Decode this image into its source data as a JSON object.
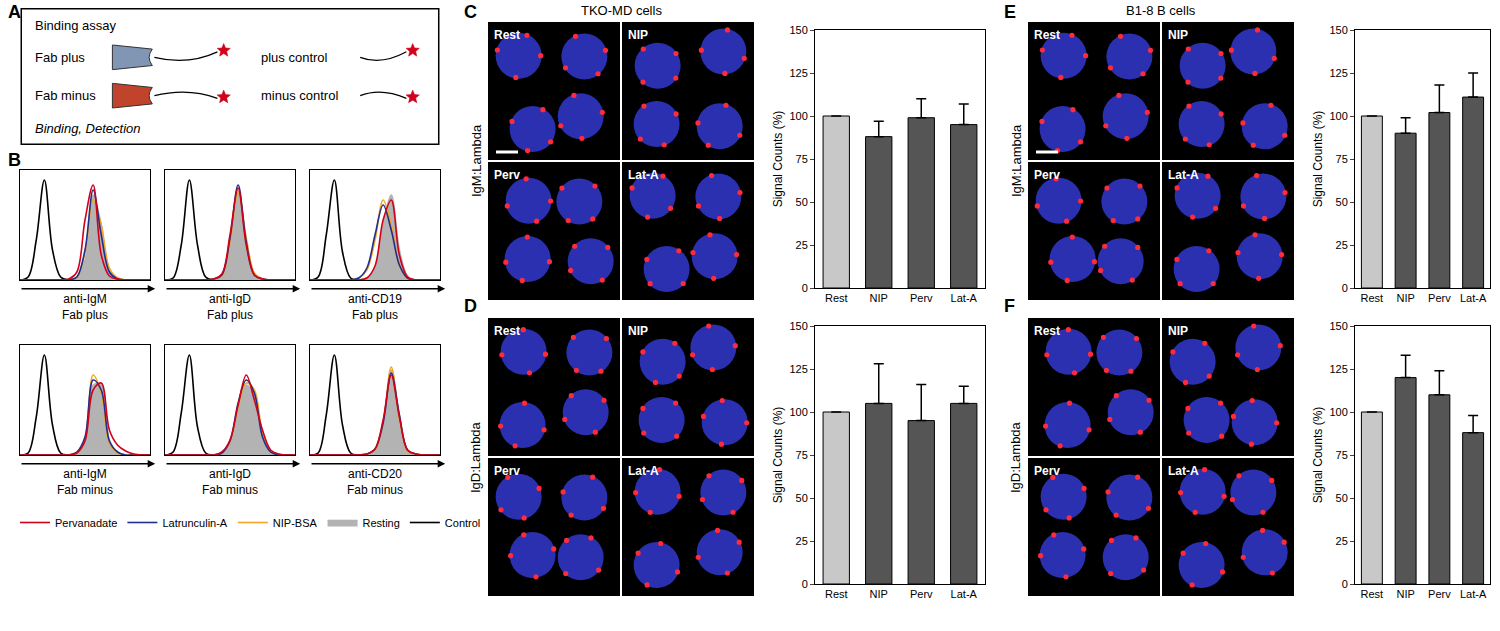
{
  "chart_data": [
    {
      "type": "line",
      "x_label": "anti-IgM\nFab plus",
      "x": [
        0,
        1,
        2,
        3,
        4,
        5,
        6,
        7,
        8,
        9,
        10,
        11,
        12,
        13,
        14,
        15,
        16
      ],
      "xlim": [
        0,
        16
      ],
      "xticks": [],
      "ylim": [
        0,
        110
      ],
      "yticks": [],
      "tick_labels": false,
      "grid": false,
      "legend": "bottom",
      "series": [
        {
          "name": "Control",
          "color": "#000000",
          "values": [
            0,
            3,
            40,
            100,
            30,
            3,
            0,
            0,
            0,
            0,
            0,
            0,
            0,
            0,
            0,
            0,
            0
          ]
        },
        {
          "name": "Resting",
          "color": "#b3b3b3",
          "type": "area",
          "values": [
            0,
            0,
            0,
            0,
            0,
            0,
            0,
            2,
            20,
            85,
            55,
            10,
            2,
            0,
            0,
            0,
            0
          ]
        },
        {
          "name": "NIP-BSA",
          "color": "#f5a623",
          "values": [
            0,
            0,
            0,
            0,
            0,
            0,
            0,
            3,
            28,
            80,
            55,
            12,
            2,
            0,
            0,
            0,
            0
          ]
        },
        {
          "name": "Latrunculin-A",
          "color": "#1f2f8f",
          "values": [
            0,
            0,
            0,
            0,
            0,
            0,
            0,
            3,
            30,
            90,
            45,
            8,
            1,
            0,
            0,
            0,
            0
          ]
        },
        {
          "name": "Pervanadate",
          "color": "#d0021b",
          "values": [
            0,
            0,
            0,
            0,
            0,
            0,
            1,
            8,
            60,
            95,
            25,
            4,
            1,
            0,
            0,
            0,
            0
          ]
        }
      ]
    },
    {
      "type": "line",
      "x_label": "anti-IgD\nFab plus",
      "x": [
        0,
        1,
        2,
        3,
        4,
        5,
        6,
        7,
        8,
        9,
        10,
        11,
        12,
        13,
        14,
        15,
        16
      ],
      "xlim": [
        0,
        16
      ],
      "xticks": [],
      "ylim": [
        0,
        110
      ],
      "yticks": [],
      "tick_labels": false,
      "grid": false,
      "series": [
        {
          "name": "Control",
          "color": "#000000",
          "values": [
            0,
            2,
            35,
            100,
            35,
            3,
            0,
            0,
            0,
            0,
            0,
            0,
            0,
            0,
            0,
            0,
            0
          ]
        },
        {
          "name": "Resting",
          "color": "#b3b3b3",
          "type": "area",
          "values": [
            0,
            0,
            0,
            0,
            0,
            0,
            1,
            5,
            40,
            90,
            40,
            6,
            1,
            0,
            0,
            0,
            0
          ]
        },
        {
          "name": "NIP-BSA",
          "color": "#f5a623",
          "values": [
            0,
            0,
            0,
            0,
            0,
            0,
            1,
            4,
            38,
            88,
            42,
            7,
            1,
            0,
            0,
            0,
            0
          ]
        },
        {
          "name": "Latrunculin-A",
          "color": "#1f2f8f",
          "values": [
            0,
            0,
            0,
            0,
            0,
            0,
            1,
            5,
            42,
            95,
            38,
            5,
            1,
            0,
            0,
            0,
            0
          ]
        },
        {
          "name": "Pervanadate",
          "color": "#d0021b",
          "values": [
            0,
            0,
            0,
            0,
            0,
            0,
            1,
            6,
            45,
            92,
            35,
            5,
            1,
            0,
            0,
            0,
            0
          ]
        }
      ]
    },
    {
      "type": "line",
      "x_label": "anti-CD19\nFab plus",
      "x": [
        0,
        1,
        2,
        3,
        4,
        5,
        6,
        7,
        8,
        9,
        10,
        11,
        12,
        13,
        14,
        15,
        16
      ],
      "xlim": [
        0,
        16
      ],
      "xticks": [],
      "ylim": [
        0,
        110
      ],
      "yticks": [],
      "tick_labels": false,
      "grid": false,
      "series": [
        {
          "name": "Control",
          "color": "#000000",
          "values": [
            0,
            3,
            45,
            100,
            28,
            2,
            0,
            0,
            0,
            0,
            0,
            0,
            0,
            0,
            0,
            0,
            0
          ]
        },
        {
          "name": "Resting",
          "color": "#b3b3b3",
          "type": "area",
          "values": [
            0,
            0,
            0,
            0,
            0,
            0,
            0,
            2,
            12,
            55,
            85,
            30,
            4,
            0,
            0,
            0,
            0
          ]
        },
        {
          "name": "NIP-BSA",
          "color": "#f5a623",
          "values": [
            0,
            0,
            0,
            0,
            0,
            0,
            2,
            10,
            40,
            80,
            55,
            14,
            2,
            0,
            0,
            0,
            0
          ]
        },
        {
          "name": "Latrunculin-A",
          "color": "#1f2f8f",
          "values": [
            0,
            0,
            0,
            0,
            0,
            0,
            2,
            12,
            45,
            75,
            50,
            15,
            2,
            0,
            0,
            0,
            0
          ]
        },
        {
          "name": "Pervanadate",
          "color": "#d0021b",
          "values": [
            0,
            0,
            0,
            0,
            0,
            0,
            0,
            2,
            14,
            60,
            80,
            25,
            3,
            0,
            0,
            0,
            0
          ]
        }
      ]
    },
    {
      "type": "line",
      "x_label": "anti-IgM\nFab minus",
      "x": [
        0,
        1,
        2,
        3,
        4,
        5,
        6,
        7,
        8,
        9,
        10,
        11,
        12,
        13,
        14,
        15,
        16
      ],
      "xlim": [
        0,
        16
      ],
      "xticks": [],
      "ylim": [
        0,
        110
      ],
      "yticks": [],
      "tick_labels": false,
      "grid": false,
      "series": [
        {
          "name": "Control",
          "color": "#000000",
          "values": [
            0,
            2,
            38,
            100,
            30,
            2,
            0,
            0,
            0,
            0,
            0,
            0,
            0,
            0,
            0,
            0,
            0
          ]
        },
        {
          "name": "Resting",
          "color": "#b3b3b3",
          "type": "area",
          "values": [
            0,
            0,
            0,
            0,
            0,
            0,
            0,
            2,
            15,
            70,
            70,
            15,
            3,
            0,
            0,
            0,
            0
          ]
        },
        {
          "name": "NIP-BSA",
          "color": "#f5a623",
          "values": [
            0,
            0,
            0,
            0,
            0,
            0,
            0,
            2,
            16,
            80,
            62,
            12,
            2,
            0,
            0,
            0,
            0
          ]
        },
        {
          "name": "Latrunculin-A",
          "color": "#1f2f8f",
          "values": [
            0,
            0,
            0,
            0,
            0,
            0,
            0,
            3,
            18,
            75,
            65,
            14,
            3,
            0,
            0,
            0,
            0
          ]
        },
        {
          "name": "Pervanadate",
          "color": "#d0021b",
          "values": [
            0,
            0,
            0,
            0,
            0,
            0,
            0,
            2,
            14,
            65,
            72,
            25,
            10,
            4,
            1,
            0,
            0
          ]
        }
      ]
    },
    {
      "type": "line",
      "x_label": "anti-IgD\nFab minus",
      "x": [
        0,
        1,
        2,
        3,
        4,
        5,
        6,
        7,
        8,
        9,
        10,
        11,
        12,
        13,
        14,
        15,
        16
      ],
      "xlim": [
        0,
        16
      ],
      "xticks": [],
      "ylim": [
        0,
        110
      ],
      "yticks": [],
      "tick_labels": false,
      "grid": false,
      "series": [
        {
          "name": "Control",
          "color": "#000000",
          "values": [
            0,
            3,
            42,
            100,
            28,
            2,
            0,
            0,
            0,
            0,
            0,
            0,
            0,
            0,
            0,
            0,
            0
          ]
        },
        {
          "name": "Resting",
          "color": "#b3b3b3",
          "type": "area",
          "values": [
            0,
            0,
            0,
            0,
            0,
            0,
            0,
            2,
            12,
            45,
            70,
            60,
            20,
            3,
            0,
            0,
            0
          ]
        },
        {
          "name": "NIP-BSA",
          "color": "#f5a623",
          "values": [
            0,
            0,
            0,
            0,
            0,
            0,
            0,
            2,
            13,
            48,
            72,
            65,
            22,
            4,
            0,
            0,
            0
          ]
        },
        {
          "name": "Latrunculin-A",
          "color": "#1f2f8f",
          "values": [
            0,
            0,
            0,
            0,
            0,
            0,
            0,
            2,
            14,
            52,
            75,
            62,
            18,
            3,
            0,
            0,
            0
          ]
        },
        {
          "name": "Pervanadate",
          "color": "#d0021b",
          "values": [
            0,
            0,
            0,
            0,
            0,
            0,
            0,
            3,
            15,
            50,
            80,
            55,
            25,
            5,
            1,
            0,
            0
          ]
        }
      ]
    },
    {
      "type": "line",
      "x_label": "anti-CD20\nFab minus",
      "x": [
        0,
        1,
        2,
        3,
        4,
        5,
        6,
        7,
        8,
        9,
        10,
        11,
        12,
        13,
        14,
        15,
        16
      ],
      "xlim": [
        0,
        16
      ],
      "xticks": [],
      "ylim": [
        0,
        110
      ],
      "yticks": [],
      "tick_labels": false,
      "grid": false,
      "series": [
        {
          "name": "Control",
          "color": "#000000",
          "values": [
            0,
            2,
            40,
            100,
            30,
            2,
            0,
            0,
            0,
            0,
            0,
            0,
            0,
            0,
            0,
            0,
            0
          ]
        },
        {
          "name": "Resting",
          "color": "#b3b3b3",
          "type": "area",
          "values": [
            0,
            0,
            0,
            0,
            0,
            0,
            0,
            1,
            5,
            30,
            85,
            40,
            5,
            1,
            0,
            0,
            0
          ]
        },
        {
          "name": "NIP-BSA",
          "color": "#f5a623",
          "values": [
            0,
            0,
            0,
            0,
            0,
            0,
            0,
            1,
            5,
            33,
            88,
            36,
            4,
            1,
            0,
            0,
            0
          ]
        },
        {
          "name": "Latrunculin-A",
          "color": "#1f2f8f",
          "values": [
            0,
            0,
            0,
            0,
            0,
            0,
            0,
            1,
            6,
            32,
            82,
            40,
            5,
            1,
            0,
            0,
            0
          ]
        },
        {
          "name": "Pervanadate",
          "color": "#d0021b",
          "values": [
            0,
            0,
            0,
            0,
            0,
            0,
            0,
            1,
            6,
            35,
            80,
            38,
            5,
            1,
            0,
            0,
            0
          ]
        }
      ]
    },
    {
      "type": "bar",
      "y_label": "Signal Counts (%)",
      "categories": [
        "Rest",
        "NIP",
        "Perv",
        "Lat-A"
      ],
      "values": [
        100,
        88,
        99,
        95
      ],
      "errors": [
        null,
        9,
        11,
        12
      ],
      "colors": [
        "#c8c8c8",
        "#555555",
        "#555555",
        "#555555"
      ],
      "ylim": [
        0,
        150
      ],
      "yticks": [
        0,
        25,
        50,
        75,
        100,
        125,
        150
      ],
      "grid": false
    },
    {
      "type": "bar",
      "y_label": "Signal Counts (%)",
      "categories": [
        "Rest",
        "NIP",
        "Perv",
        "Lat-A"
      ],
      "values": [
        100,
        105,
        95,
        105
      ],
      "errors": [
        null,
        23,
        21,
        10
      ],
      "colors": [
        "#c8c8c8",
        "#555555",
        "#555555",
        "#555555"
      ],
      "ylim": [
        0,
        150
      ],
      "yticks": [
        0,
        25,
        50,
        75,
        100,
        125,
        150
      ],
      "grid": false
    },
    {
      "type": "bar",
      "y_label": "Signal Counts (%)",
      "categories": [
        "Rest",
        "NIP",
        "Perv",
        "Lat-A"
      ],
      "values": [
        100,
        90,
        102,
        111
      ],
      "errors": [
        null,
        9,
        16,
        14
      ],
      "colors": [
        "#c8c8c8",
        "#555555",
        "#555555",
        "#555555"
      ],
      "ylim": [
        0,
        150
      ],
      "yticks": [
        0,
        25,
        50,
        75,
        100,
        125,
        150
      ],
      "grid": false
    },
    {
      "type": "bar",
      "y_label": "Signal Counts (%)",
      "categories": [
        "Rest",
        "NIP",
        "Perv",
        "Lat-A"
      ],
      "values": [
        100,
        120,
        110,
        88
      ],
      "errors": [
        null,
        13,
        14,
        10
      ],
      "colors": [
        "#c8c8c8",
        "#555555",
        "#555555",
        "#555555"
      ],
      "ylim": [
        0,
        150
      ],
      "yticks": [
        0,
        25,
        50,
        75,
        100,
        125,
        150
      ],
      "grid": false
    }
  ],
  "panel_labels": [
    "A",
    "B",
    "C",
    "D",
    "E",
    "F"
  ],
  "binding_assay": {
    "title": "Binding assay",
    "rows": [
      {
        "label": "Fab plus",
        "control": "plus control"
      },
      {
        "label": "Fab minus",
        "control": "minus control"
      }
    ],
    "caption": "Binding, Detection"
  },
  "micrographs": {
    "columns": [
      {
        "heading": "TKO-MD cells",
        "rows": [
          {
            "label": "IgM:Lambda",
            "images": [
              "Rest",
              "NIP",
              "Perv",
              "Lat-A"
            ]
          },
          {
            "label": "IgD:Lambda",
            "images": [
              "Rest",
              "NIP",
              "Perv",
              "Lat-A"
            ]
          }
        ]
      },
      {
        "heading": "B1-8 B cells",
        "rows": [
          {
            "label": "IgM:Lambda",
            "images": [
              "Rest",
              "NIP",
              "Perv",
              "Lat-A"
            ]
          },
          {
            "label": "IgD:Lambda",
            "images": [
              "Rest",
              "NIP",
              "Perv",
              "Lat-A"
            ]
          }
        ]
      }
    ]
  }
}
